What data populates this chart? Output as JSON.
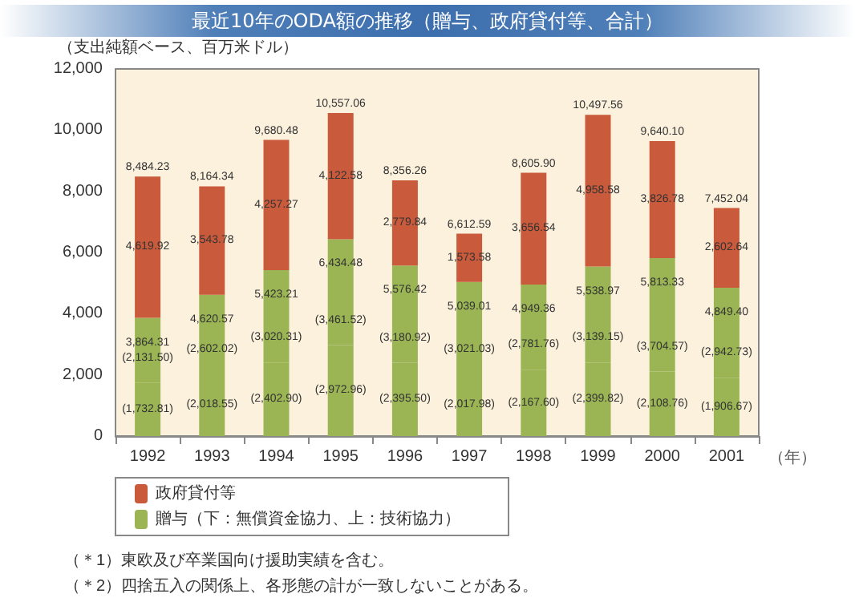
{
  "chart_data": {
    "type": "bar",
    "title": "最近10年のODA額の推移（贈与、政府貸付等、合計）",
    "ylabel": "（支出純額ベース、百万米ドル）",
    "xlabel": "（年）",
    "categories": [
      "1992",
      "1993",
      "1994",
      "1995",
      "1996",
      "1997",
      "1998",
      "1999",
      "2000",
      "2001"
    ],
    "stacked": true,
    "ylim": [
      0,
      12000
    ],
    "yticks": [
      0,
      {
        "value": 2000,
        "label": "2,000"
      },
      {
        "value": 4000,
        "label": "4,000"
      },
      {
        "value": 6000,
        "label": "6,000"
      },
      {
        "value": 8000,
        "label": "8,000"
      },
      {
        "value": 10000,
        "label": "10,000"
      },
      {
        "value": 12000,
        "label": "12,000"
      }
    ],
    "grid": false,
    "legend": "bottom left",
    "series": [
      {
        "color": "#9bb554",
        "values": [
          1732.81,
          2018.55,
          2402.9,
          2972.96,
          2395.5,
          2017.98,
          2167.6,
          2399.82,
          2108.76,
          1906.67
        ],
        "value_labels": [
          "(1,732.81)",
          "(2,018.55)",
          "(2,402.90)",
          "(2,972.96)",
          "(2,395.50)",
          "(2,017.98)",
          "(2,167.60)",
          "(2,399.82)",
          "(2,108.76)",
          "(1,906.67)"
        ]
      },
      {
        "name": "贈与（下：無償資金協力、上：技術協力）",
        "color": "#9bb554",
        "values": [
          2131.5,
          2602.02,
          3020.31,
          3461.52,
          3180.92,
          3021.03,
          2781.76,
          3139.15,
          3704.57,
          2942.73
        ],
        "value_labels": [
          "(2,131.50)",
          "(2,602.02)",
          "(3,020.31)",
          "(3,461.52)",
          "(3,180.92)",
          "(3,021.03)",
          "(2,781.76)",
          "(3,139.15)",
          "(3,704.57)",
          "(2,942.73)"
        ]
      },
      {
        "name": "政府貸付等",
        "color": "#c95a3c",
        "values": [
          4619.92,
          3543.78,
          4257.27,
          4122.58,
          2779.84,
          1573.58,
          3656.54,
          4958.58,
          3826.78,
          2602.64
        ],
        "value_labels": [
          "4,619.92",
          "3,543.78",
          "4,257.27",
          "4,122.58",
          "2,779.84",
          "1,573.58",
          "3,656.54",
          "4,958.58",
          "3,826.78",
          "2,602.64"
        ]
      }
    ],
    "totals": [
      "8,484.23",
      "8,164.34",
      "9,680.48",
      "10,557.06",
      "8,356.26",
      "6,612.59",
      "8,605.90",
      "10,497.56",
      "9,640.10",
      "7,452.04"
    ],
    "annotations": [
      {
        "text": "3,864.31",
        "x": "1992",
        "y": 3864.31
      },
      {
        "text": "4,620.57",
        "x": "1993",
        "y": 4620.57
      },
      {
        "text": "5,423.21",
        "x": "1994",
        "y": 5423.21
      },
      {
        "text": "6,434.48",
        "x": "1995",
        "y": 6434.48
      },
      {
        "text": "5,576.42",
        "x": "1996",
        "y": 5576.42
      },
      {
        "text": "5,039.01",
        "x": "1997",
        "y": 5039.01
      },
      {
        "text": "4,949.36",
        "x": "1998",
        "y": 4949.36
      },
      {
        "text": "5,538.97",
        "x": "1999",
        "y": 5538.97
      },
      {
        "text": "5,813.33",
        "x": "2000",
        "y": 5813.33
      },
      {
        "text": "4,849.40",
        "x": "2001",
        "y": 4849.4
      },
      "（＊1）東欧及び卒業国向け援助実績を含む。",
      "（＊2）四捨五入の関係上、各形態の計が一致しないことがある。"
    ]
  }
}
